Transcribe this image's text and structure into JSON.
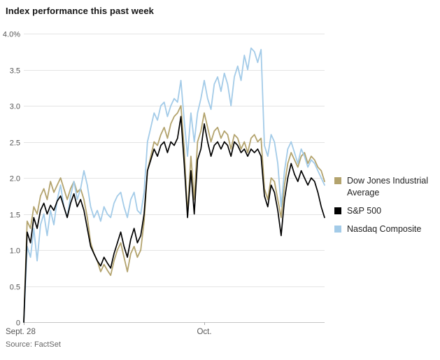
{
  "chart": {
    "title": "Index performance this past week",
    "source": "Source: FactSet"
  },
  "legend": {
    "items": [
      {
        "label": "Dow Jones Industrial Average",
        "color": "#b3a36d"
      },
      {
        "label": "S&P 500",
        "color": "#000000"
      },
      {
        "label": "Nasdaq Composite",
        "color": "#a3cbe8"
      }
    ]
  },
  "chart_data": {
    "type": "line",
    "title": "Index performance this past week",
    "unit": "%",
    "ylim": [
      0,
      4.0
    ],
    "grid": true,
    "legend_position": "right",
    "y_ticks": [
      "4.0%",
      "3.5",
      "3.0",
      "2.5",
      "2.0",
      "1.5",
      "1.0",
      "0.5",
      "0"
    ],
    "x_ticks": [
      {
        "label": "Sept. 28",
        "frac": 0.0
      },
      {
        "label": "Oct.",
        "frac": 0.6
      }
    ],
    "series": [
      {
        "name": "Dow Jones Industrial Average",
        "color": "#b3a36d",
        "values": [
          0.0,
          1.4,
          1.3,
          1.6,
          1.5,
          1.75,
          1.85,
          1.7,
          1.95,
          1.8,
          1.9,
          2.0,
          1.85,
          1.7,
          1.85,
          1.95,
          1.8,
          1.85,
          1.7,
          1.45,
          1.1,
          0.95,
          0.85,
          0.7,
          0.8,
          0.72,
          0.65,
          0.85,
          1.0,
          1.1,
          0.9,
          0.7,
          0.95,
          1.05,
          0.9,
          1.0,
          1.4,
          2.1,
          2.3,
          2.5,
          2.45,
          2.6,
          2.7,
          2.55,
          2.75,
          2.85,
          2.9,
          3.0,
          2.4,
          1.5,
          2.3,
          1.7,
          2.5,
          2.65,
          2.9,
          2.7,
          2.5,
          2.65,
          2.7,
          2.55,
          2.65,
          2.6,
          2.4,
          2.6,
          2.55,
          2.4,
          2.5,
          2.35,
          2.55,
          2.6,
          2.5,
          2.55,
          1.85,
          1.7,
          2.0,
          1.95,
          1.7,
          1.45,
          1.9,
          2.2,
          2.35,
          2.25,
          2.15,
          2.3,
          2.35,
          2.2,
          2.3,
          2.25,
          2.15,
          2.1,
          1.95
        ]
      },
      {
        "name": "S&P 500",
        "color": "#000000",
        "values": [
          0.0,
          1.25,
          1.1,
          1.45,
          1.3,
          1.55,
          1.65,
          1.5,
          1.62,
          1.55,
          1.68,
          1.75,
          1.6,
          1.45,
          1.65,
          1.78,
          1.6,
          1.7,
          1.55,
          1.3,
          1.05,
          0.95,
          0.85,
          0.78,
          0.9,
          0.82,
          0.75,
          0.95,
          1.1,
          1.25,
          1.05,
          0.9,
          1.15,
          1.3,
          1.1,
          1.2,
          1.5,
          2.1,
          2.25,
          2.4,
          2.3,
          2.45,
          2.5,
          2.35,
          2.5,
          2.45,
          2.55,
          2.85,
          2.2,
          1.45,
          2.1,
          1.5,
          2.25,
          2.4,
          2.75,
          2.5,
          2.3,
          2.45,
          2.5,
          2.4,
          2.5,
          2.45,
          2.3,
          2.5,
          2.45,
          2.35,
          2.4,
          2.3,
          2.4,
          2.35,
          2.4,
          2.3,
          1.75,
          1.6,
          1.9,
          1.8,
          1.55,
          1.2,
          1.7,
          2.0,
          2.2,
          2.05,
          1.95,
          2.1,
          2.0,
          1.9,
          2.0,
          1.95,
          1.8,
          1.6,
          1.45
        ]
      },
      {
        "name": "Nasdaq Composite",
        "color": "#a3cbe8",
        "values": [
          0.0,
          1.05,
          0.9,
          1.3,
          0.85,
          1.35,
          1.5,
          1.2,
          1.55,
          1.35,
          1.7,
          1.9,
          1.6,
          1.45,
          1.75,
          1.95,
          1.7,
          1.85,
          2.1,
          1.9,
          1.6,
          1.45,
          1.55,
          1.4,
          1.6,
          1.5,
          1.45,
          1.65,
          1.75,
          1.8,
          1.6,
          1.45,
          1.7,
          1.8,
          1.55,
          1.5,
          1.8,
          2.5,
          2.7,
          2.9,
          2.8,
          3.0,
          3.05,
          2.85,
          3.0,
          3.1,
          3.05,
          3.35,
          2.8,
          2.3,
          2.9,
          2.5,
          2.9,
          3.1,
          3.35,
          3.1,
          2.95,
          3.3,
          3.4,
          3.2,
          3.45,
          3.3,
          3.0,
          3.4,
          3.55,
          3.35,
          3.7,
          3.5,
          3.8,
          3.75,
          3.6,
          3.78,
          2.45,
          2.3,
          2.6,
          2.5,
          2.2,
          1.6,
          2.1,
          2.4,
          2.5,
          2.35,
          2.2,
          2.4,
          2.3,
          2.15,
          2.25,
          2.2,
          2.1,
          2.0,
          1.9
        ]
      }
    ]
  }
}
